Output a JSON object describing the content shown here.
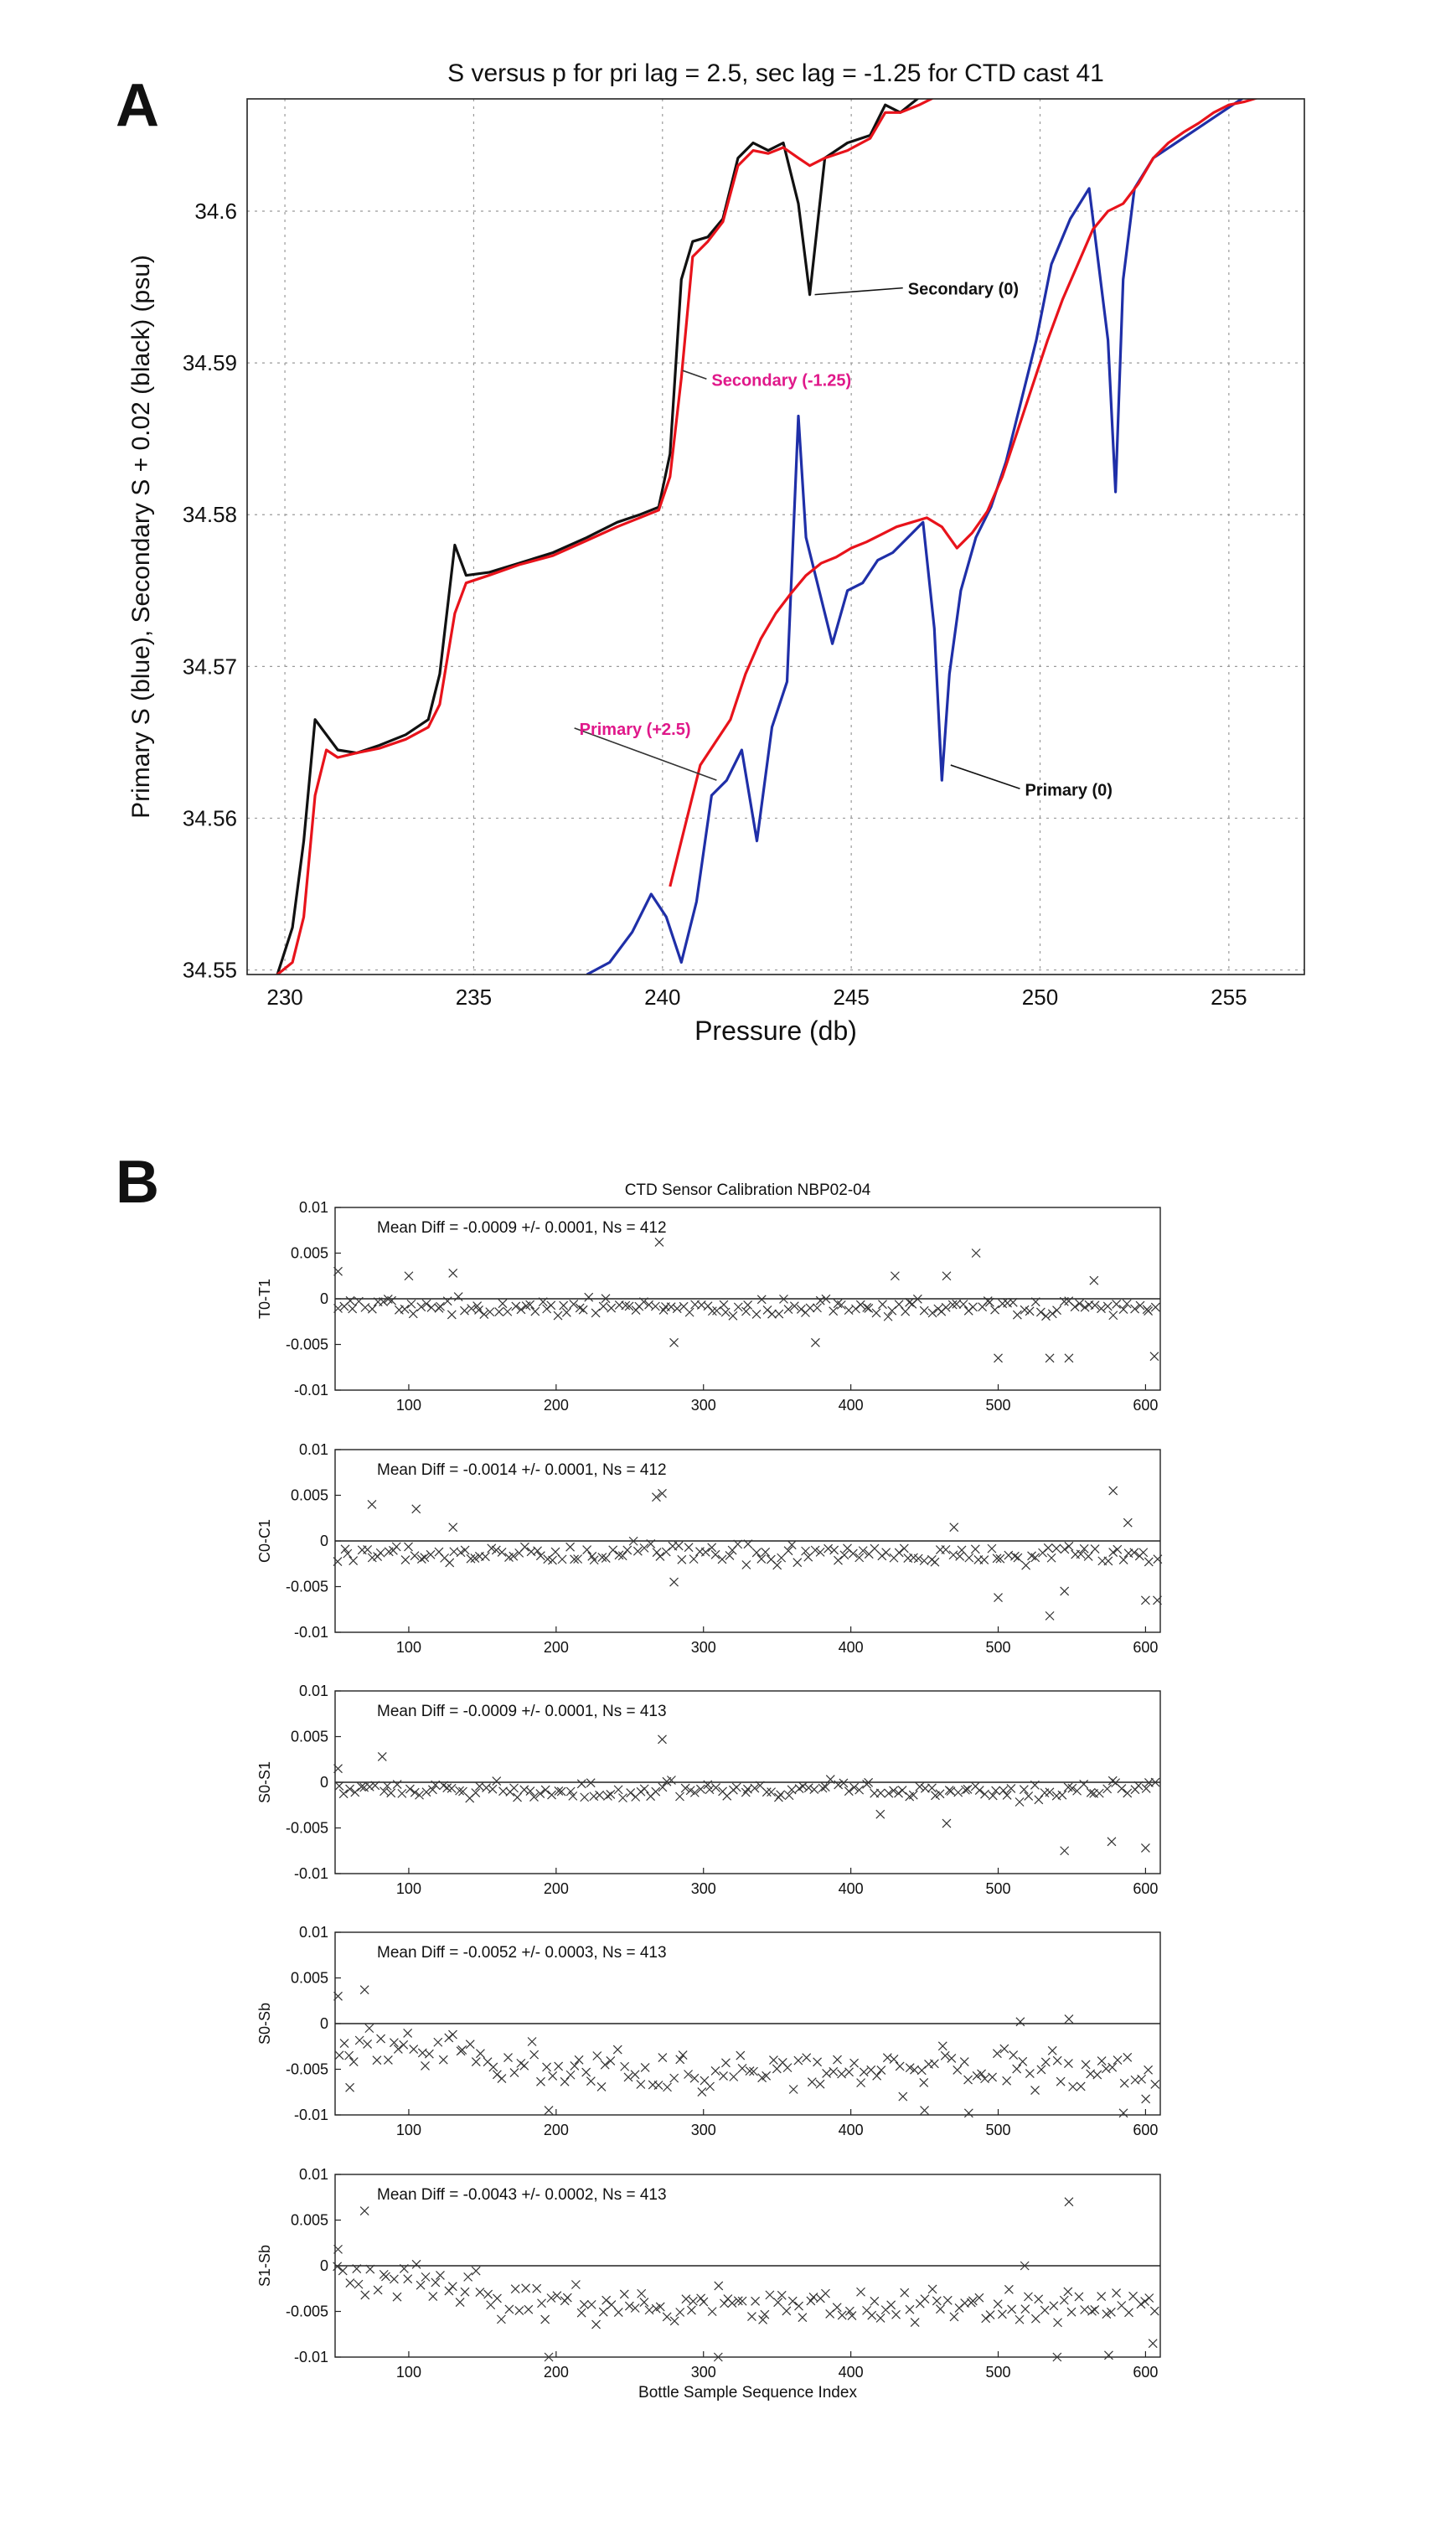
{
  "panels": {
    "a_label": "A",
    "b_label": "B"
  },
  "chart_data": [
    {
      "type": "line",
      "id": "A",
      "title": "S versus p for pri lag = 2.5, sec lag = -1.25 for CTD cast 41",
      "xlabel": "Pressure (db)",
      "ylabel": "Primary S (blue), Secondary S + 0.02 (black) (psu)",
      "xlim": [
        229,
        257
      ],
      "ylim": [
        34.5497,
        34.6074
      ],
      "xticks": [
        230,
        235,
        240,
        245,
        250,
        255
      ],
      "yticks": [
        34.55,
        34.56,
        34.57,
        34.58,
        34.59,
        34.6
      ],
      "ytick_labels": [
        "34.55",
        "34.56",
        "34.57",
        "34.58",
        "34.59",
        "34.6"
      ],
      "grid": true,
      "colors": {
        "primary": "#1f2fa8",
        "secondary": "#111111",
        "corrected": "#e8131b",
        "annot": "#e0188a"
      },
      "series": [
        {
          "name": "Secondary (0)",
          "color": "#111111",
          "x": [
            229.8,
            230.2,
            230.5,
            230.8,
            231.1,
            231.4,
            231.9,
            232.5,
            233.2,
            233.8,
            234.1,
            234.5,
            234.8,
            235.4,
            236.2,
            237.1,
            238.0,
            238.8,
            239.4,
            239.9,
            240.2,
            240.5,
            240.8,
            241.2,
            241.6,
            242.0,
            242.4,
            242.8,
            243.2,
            243.6,
            243.9,
            244.3,
            244.9,
            245.5,
            245.9,
            246.3,
            246.8,
            247.2
          ],
          "y": [
            34.5497,
            34.5528,
            34.5585,
            34.5665,
            34.5655,
            34.5645,
            34.5643,
            34.5648,
            34.5655,
            34.5665,
            34.5695,
            34.578,
            34.576,
            34.5762,
            34.5768,
            34.5775,
            34.5785,
            34.5795,
            34.58,
            34.5805,
            34.584,
            34.5955,
            34.598,
            34.5983,
            34.5995,
            34.6035,
            34.6045,
            34.604,
            34.6045,
            34.6005,
            34.5945,
            34.6035,
            34.6045,
            34.605,
            34.607,
            34.6065,
            34.6075,
            34.608
          ]
        },
        {
          "name": "Secondary (-1.25)",
          "color": "#e8131b",
          "x": [
            229.8,
            230.2,
            230.5,
            230.8,
            231.1,
            231.4,
            231.9,
            232.5,
            233.2,
            233.8,
            234.1,
            234.5,
            234.8,
            235.4,
            236.2,
            237.1,
            238.0,
            238.8,
            239.4,
            239.9,
            240.2,
            240.5,
            240.8,
            241.2,
            241.6,
            242.0,
            242.4,
            242.8,
            243.2,
            243.6,
            243.9,
            244.3,
            244.9,
            245.5,
            245.9,
            246.3,
            246.8,
            247.2
          ],
          "y": [
            34.5497,
            34.5505,
            34.5535,
            34.5615,
            34.5645,
            34.564,
            34.5643,
            34.5646,
            34.5652,
            34.566,
            34.5675,
            34.5735,
            34.5755,
            34.576,
            34.5767,
            34.5773,
            34.5783,
            34.5792,
            34.5798,
            34.5803,
            34.5825,
            34.589,
            34.597,
            34.598,
            34.5993,
            34.603,
            34.604,
            34.6038,
            34.6042,
            34.6035,
            34.603,
            34.6035,
            34.604,
            34.6048,
            34.6065,
            34.6065,
            34.607,
            34.6075
          ]
        },
        {
          "name": "Primary (0)",
          "color": "#1f2fa8",
          "x": [
            238.0,
            238.6,
            239.2,
            239.7,
            240.1,
            240.5,
            240.9,
            241.3,
            241.7,
            242.1,
            242.5,
            242.9,
            243.3,
            243.6,
            243.8,
            244.1,
            244.5,
            244.9,
            245.3,
            245.7,
            246.1,
            246.5,
            246.9,
            247.2,
            247.4,
            247.6,
            247.9,
            248.3,
            248.7,
            249.1,
            249.5,
            249.9,
            250.3,
            250.8,
            251.3,
            251.8,
            252.0,
            252.2,
            252.5,
            253.0,
            253.6,
            254.2,
            254.8,
            255.4,
            256.0
          ],
          "y": [
            34.5497,
            34.5505,
            34.5525,
            34.555,
            34.5535,
            34.5505,
            34.5545,
            34.5615,
            34.5625,
            34.5645,
            34.5585,
            34.566,
            34.569,
            34.5865,
            34.5785,
            34.5755,
            34.5715,
            34.575,
            34.5755,
            34.577,
            34.5775,
            34.5785,
            34.5795,
            34.5725,
            34.5625,
            34.5695,
            34.575,
            34.5785,
            34.5805,
            34.5835,
            34.5875,
            34.5915,
            34.5965,
            34.5995,
            34.6015,
            34.5915,
            34.5815,
            34.5955,
            34.6015,
            34.6035,
            34.6045,
            34.6055,
            34.6065,
            34.6075,
            34.6075
          ]
        },
        {
          "name": "Primary (+2.5)",
          "color": "#e8131b",
          "x": [
            240.2,
            240.6,
            241.0,
            241.4,
            241.8,
            242.2,
            242.6,
            243.0,
            243.4,
            243.8,
            244.2,
            244.6,
            245.0,
            245.4,
            245.8,
            246.2,
            246.6,
            247.0,
            247.4,
            247.8,
            248.2,
            248.6,
            249.0,
            249.4,
            249.8,
            250.2,
            250.6,
            251.0,
            251.4,
            251.8,
            252.2,
            252.6,
            253.0,
            253.4,
            253.8,
            254.2,
            254.6,
            255.0,
            255.4,
            255.8
          ],
          "y": [
            34.5555,
            34.5595,
            34.5635,
            34.565,
            34.5665,
            34.5695,
            34.5718,
            34.5735,
            34.5748,
            34.576,
            34.5768,
            34.5772,
            34.5778,
            34.5782,
            34.5787,
            34.5792,
            34.5795,
            34.5798,
            34.5792,
            34.5778,
            34.5788,
            34.5802,
            34.5825,
            34.5855,
            34.5885,
            34.5915,
            34.5942,
            34.5965,
            34.5988,
            34.6,
            34.6005,
            34.6018,
            34.6035,
            34.6045,
            34.6052,
            34.6058,
            34.6065,
            34.607,
            34.6072,
            34.6075
          ]
        }
      ],
      "annotations": [
        {
          "text": "Secondary (0)",
          "color": "#111111",
          "point": [
            243.9,
            34.5945
          ],
          "anchor": [
            246.5,
            34.5945
          ]
        },
        {
          "text": "Secondary  (-1.25)",
          "color": "#e0188a",
          "point": [
            240.4,
            34.5895
          ],
          "anchor": [
            241.3,
            34.5885
          ]
        },
        {
          "text": "Primary (+2.5)",
          "color": "#e0188a",
          "point": [
            241.3,
            34.5625
          ],
          "anchor": [
            237.8,
            34.5655
          ]
        },
        {
          "text": "Primary (0)",
          "color": "#111111",
          "point": [
            247.5,
            34.5635
          ],
          "anchor": [
            249.6,
            34.5615
          ]
        }
      ]
    },
    {
      "type": "scatter",
      "id": "B",
      "title": "CTD Sensor Calibration NBP02-04",
      "xlabel": "Bottle Sample Sequence Index",
      "xlim": [
        50,
        610
      ],
      "xticks": [
        100,
        200,
        300,
        400,
        500,
        600
      ],
      "ylim": [
        -0.01,
        0.01
      ],
      "yticks": [
        0.01,
        0.005,
        0,
        -0.005,
        -0.01
      ],
      "ytick_labels": [
        "0.01",
        "0.005",
        "0",
        "-0.005",
        "-0.01"
      ],
      "subplots": [
        {
          "ylabel": "T0-T1",
          "stats": "Mean Diff = -0.0009 +/-  0.0001,     Ns = 412",
          "mean": -0.0009,
          "spread": 0.0009,
          "n": 412,
          "outliers": [
            [
              270,
              0.0062
            ],
            [
              485,
              0.005
            ],
            [
              500,
              -0.0065
            ],
            [
              535,
              -0.0065
            ],
            [
              548,
              -0.0065
            ],
            [
              606,
              -0.0063
            ],
            [
              280,
              -0.0048
            ],
            [
              376,
              -0.0048
            ],
            [
              430,
              0.0025
            ],
            [
              465,
              0.0025
            ],
            [
              100,
              0.0025
            ],
            [
              130,
              0.0028
            ],
            [
              565,
              0.002
            ],
            [
              52,
              0.003
            ]
          ]
        },
        {
          "ylabel": "C0-C1",
          "stats": "Mean Diff = -0.0014 +/-  0.0001,     Ns = 412",
          "mean": -0.0014,
          "spread": 0.0011,
          "n": 412,
          "outliers": [
            [
              75,
              0.004
            ],
            [
              105,
              0.0035
            ],
            [
              268,
              0.0048
            ],
            [
              272,
              0.0052
            ],
            [
              578,
              0.0055
            ],
            [
              588,
              0.002
            ],
            [
              600,
              -0.0065
            ],
            [
              608,
              -0.0065
            ],
            [
              500,
              -0.0062
            ],
            [
              535,
              -0.0082
            ],
            [
              545,
              -0.0055
            ],
            [
              280,
              -0.0045
            ],
            [
              130,
              0.0015
            ],
            [
              470,
              0.0015
            ]
          ]
        },
        {
          "ylabel": "S0-S1",
          "stats": "Mean Diff = -0.0009 +/-  0.0001,     Ns = 413",
          "mean": -0.0009,
          "spread": 0.0009,
          "n": 413,
          "outliers": [
            [
              272,
              0.0047
            ],
            [
              82,
              0.0028
            ],
            [
              545,
              -0.0075
            ],
            [
              577,
              -0.0065
            ],
            [
              600,
              -0.0072
            ],
            [
              465,
              -0.0045
            ],
            [
              52,
              0.0015
            ],
            [
              420,
              -0.0035
            ]
          ]
        },
        {
          "ylabel": "S0-Sb",
          "stats": "Mean Diff = -0.0052 +/-  0.0003,     Ns = 413",
          "mean": -0.0052,
          "spread": 0.0022,
          "n": 413,
          "outliers": [
            [
              52,
              0.003
            ],
            [
              70,
              0.0037
            ],
            [
              548,
              0.0005
            ],
            [
              515,
              0.0002
            ],
            [
              195,
              -0.0095
            ],
            [
              450,
              -0.0095
            ],
            [
              480,
              -0.0098
            ],
            [
              585,
              -0.0098
            ],
            [
              60,
              -0.007
            ]
          ]
        },
        {
          "ylabel": "S1-Sb",
          "stats": "Mean Diff = -0.0043 +/-  0.0002,     Ns = 413",
          "mean": -0.0043,
          "spread": 0.0019,
          "n": 413,
          "outliers": [
            [
              70,
              0.006
            ],
            [
              548,
              0.007
            ],
            [
              52,
              0.0018
            ],
            [
              518,
              0.0
            ],
            [
              195,
              -0.01
            ],
            [
              310,
              -0.01
            ],
            [
              540,
              -0.01
            ],
            [
              575,
              -0.0098
            ],
            [
              605,
              -0.0085
            ]
          ]
        }
      ]
    }
  ]
}
